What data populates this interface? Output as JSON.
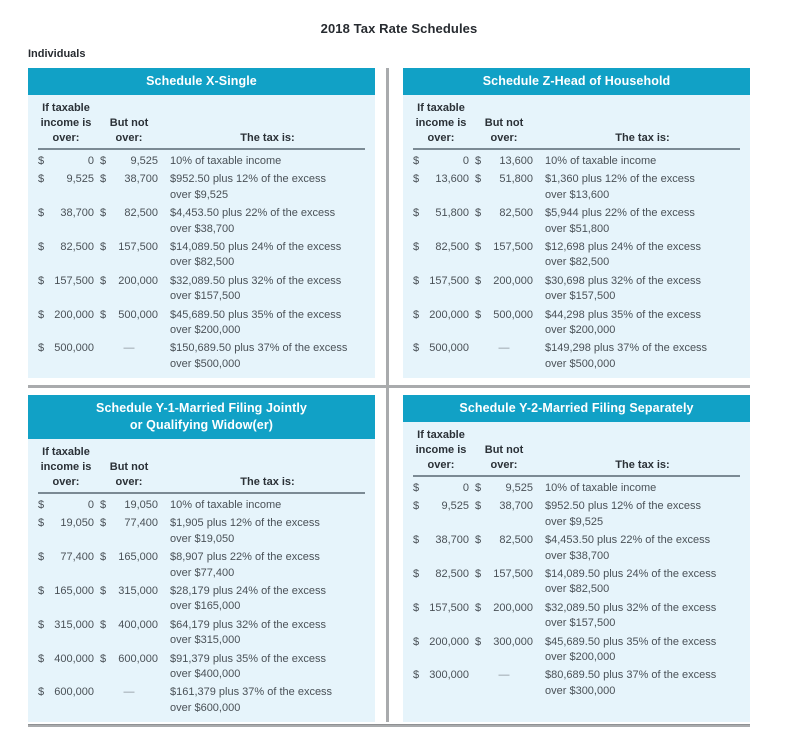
{
  "page": {
    "title": "2018 Tax Rate Schedules",
    "section_label": "Individuals"
  },
  "colors": {
    "header_bg": "#11a1c6",
    "panel_bg": "#e6f4fb",
    "rule_gray": "#a9abad",
    "header_underline": "#7b8a94",
    "text": "#4a5157",
    "heading_text": "#2b3137",
    "title_text": "#272b30",
    "header_text": "#ffffff",
    "dash": "#8b9299"
  },
  "columns": {
    "col1_lines": [
      "If taxable",
      "income is",
      "over:"
    ],
    "col2_lines": [
      "But not",
      "over:"
    ],
    "col3_lines": [
      "The tax is:"
    ]
  },
  "dash_symbol": "—",
  "schedules": [
    {
      "title_lines": [
        "Schedule X-Single"
      ],
      "rows": [
        {
          "d1": "$",
          "v1": "0",
          "d2": "$",
          "v2": "9,525",
          "tax": [
            "10% of taxable income"
          ]
        },
        {
          "d1": "$",
          "v1": "9,525",
          "d2": "$",
          "v2": "38,700",
          "tax": [
            "$952.50 plus 12% of the excess",
            "over $9,525"
          ]
        },
        {
          "d1": "$",
          "v1": "38,700",
          "d2": "$",
          "v2": "82,500",
          "tax": [
            "$4,453.50 plus 22% of the excess",
            "over $38,700"
          ]
        },
        {
          "d1": "$",
          "v1": "82,500",
          "d2": "$",
          "v2": "157,500",
          "tax": [
            "$14,089.50 plus 24% of the excess",
            "over $82,500"
          ]
        },
        {
          "d1": "$",
          "v1": "157,500",
          "d2": "$",
          "v2": "200,000",
          "tax": [
            "$32,089.50 plus 32% of the excess",
            "over $157,500"
          ]
        },
        {
          "d1": "$",
          "v1": "200,000",
          "d2": "$",
          "v2": "500,000",
          "tax": [
            "$45,689.50 plus 35% of the excess",
            "over $200,000"
          ]
        },
        {
          "d1": "$",
          "v1": "500,000",
          "d2": "",
          "v2": "—",
          "tax": [
            "$150,689.50 plus 37% of the excess",
            "over $500,000"
          ]
        }
      ]
    },
    {
      "title_lines": [
        "Schedule Z-Head of Household"
      ],
      "rows": [
        {
          "d1": "$",
          "v1": "0",
          "d2": "$",
          "v2": "13,600",
          "tax": [
            "10% of taxable income"
          ]
        },
        {
          "d1": "$",
          "v1": "13,600",
          "d2": "$",
          "v2": "51,800",
          "tax": [
            "$1,360 plus 12% of the excess",
            "over $13,600"
          ]
        },
        {
          "d1": "$",
          "v1": "51,800",
          "d2": "$",
          "v2": "82,500",
          "tax": [
            "$5,944 plus 22% of the excess",
            "over $51,800"
          ]
        },
        {
          "d1": "$",
          "v1": "82,500",
          "d2": "$",
          "v2": "157,500",
          "tax": [
            "$12,698 plus 24% of the excess",
            "over $82,500"
          ]
        },
        {
          "d1": "$",
          "v1": "157,500",
          "d2": "$",
          "v2": "200,000",
          "tax": [
            "$30,698 plus 32% of the excess",
            "over $157,500"
          ]
        },
        {
          "d1": "$",
          "v1": "200,000",
          "d2": "$",
          "v2": "500,000",
          "tax": [
            "$44,298 plus 35% of the excess",
            "over $200,000"
          ]
        },
        {
          "d1": "$",
          "v1": "500,000",
          "d2": "",
          "v2": "—",
          "tax": [
            "$149,298 plus 37% of the excess",
            "over $500,000"
          ]
        }
      ]
    },
    {
      "title_lines": [
        "Schedule Y-1-Married Filing Jointly",
        "or Qualifying Widow(er)"
      ],
      "rows": [
        {
          "d1": "$",
          "v1": "0",
          "d2": "$",
          "v2": "19,050",
          "tax": [
            "10% of taxable income"
          ]
        },
        {
          "d1": "$",
          "v1": "19,050",
          "d2": "$",
          "v2": "77,400",
          "tax": [
            "$1,905 plus 12% of the excess",
            "over $19,050"
          ]
        },
        {
          "d1": "$",
          "v1": "77,400",
          "d2": "$",
          "v2": "165,000",
          "tax": [
            "$8,907 plus 22% of the excess",
            "over $77,400"
          ]
        },
        {
          "d1": "$",
          "v1": "165,000",
          "d2": "$",
          "v2": "315,000",
          "tax": [
            "$28,179 plus 24% of the excess",
            "over $165,000"
          ]
        },
        {
          "d1": "$",
          "v1": "315,000",
          "d2": "$",
          "v2": "400,000",
          "tax": [
            "$64,179 plus 32% of the excess",
            "over $315,000"
          ]
        },
        {
          "d1": "$",
          "v1": "400,000",
          "d2": "$",
          "v2": "600,000",
          "tax": [
            "$91,379 plus 35% of the excess",
            "over $400,000"
          ]
        },
        {
          "d1": "$",
          "v1": "600,000",
          "d2": "",
          "v2": "—",
          "tax": [
            "$161,379 plus 37% of the excess",
            "over $600,000"
          ]
        }
      ]
    },
    {
      "title_lines": [
        "Schedule Y-2-Married Filing Separately"
      ],
      "rows": [
        {
          "d1": "$",
          "v1": "0",
          "d2": "$",
          "v2": "9,525",
          "tax": [
            "10% of taxable income"
          ]
        },
        {
          "d1": "$",
          "v1": "9,525",
          "d2": "$",
          "v2": "38,700",
          "tax": [
            "$952.50 plus 12% of the excess",
            "over $9,525"
          ]
        },
        {
          "d1": "$",
          "v1": "38,700",
          "d2": "$",
          "v2": "82,500",
          "tax": [
            "$4,453.50 plus 22% of the excess",
            "over $38,700"
          ]
        },
        {
          "d1": "$",
          "v1": "82,500",
          "d2": "$",
          "v2": "157,500",
          "tax": [
            "$14,089.50 plus 24% of the excess",
            "over $82,500"
          ]
        },
        {
          "d1": "$",
          "v1": "157,500",
          "d2": "$",
          "v2": "200,000",
          "tax": [
            "$32,089.50 plus 32% of the excess",
            "over $157,500"
          ]
        },
        {
          "d1": "$",
          "v1": "200,000",
          "d2": "$",
          "v2": "300,000",
          "tax": [
            "$45,689.50 plus 35% of the excess",
            "over $200,000"
          ]
        },
        {
          "d1": "$",
          "v1": "300,000",
          "d2": "",
          "v2": "—",
          "tax": [
            "$80,689.50 plus 37% of the excess",
            "over $300,000"
          ]
        }
      ]
    }
  ]
}
